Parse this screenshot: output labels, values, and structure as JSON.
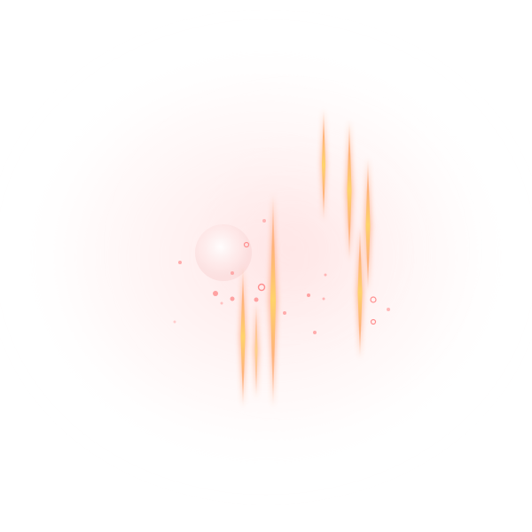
{
  "scene": {
    "subject": "",
    "background_color": "#ffffff",
    "colors": {
      "haze": "#ffe3e3",
      "haze_core": "#ffd0d0",
      "streak_core": "#ffd36a",
      "streak_edge": "#ff8c5a",
      "sparkle": "#ff8f8f",
      "orb": "#ffdede"
    },
    "streak_count": 7,
    "sparkle_count": 18
  }
}
